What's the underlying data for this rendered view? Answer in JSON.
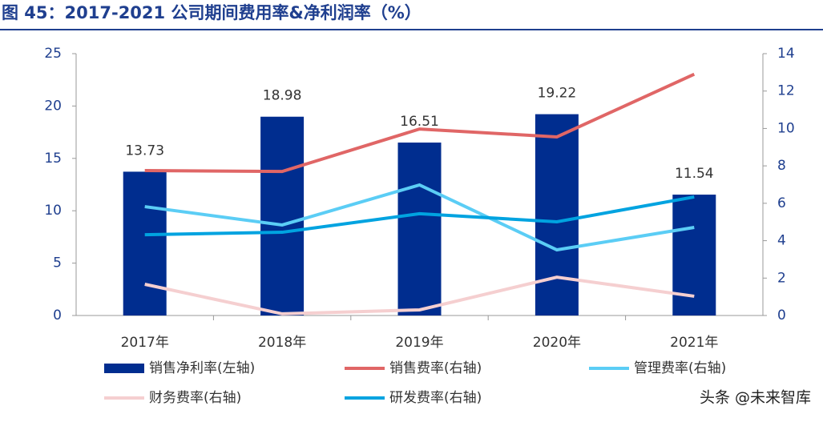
{
  "chart_data": {
    "type": "bar",
    "title": "图 45：2017-2021 公司期间费用率&净利润率（%）",
    "categories": [
      "2017年",
      "2018年",
      "2019年",
      "2020年",
      "2021年"
    ],
    "series": [
      {
        "name": "销售净利率(左轴)",
        "type": "bar",
        "color": "#002d8f",
        "values": [
          13.73,
          18.98,
          16.51,
          19.22,
          11.54
        ]
      },
      {
        "name": "销售费率(右轴)",
        "type": "line",
        "axis": "y2",
        "color": "#e06666",
        "values": [
          7.75,
          7.7,
          9.97,
          9.55,
          12.9
        ]
      },
      {
        "name": "管理费率(右轴)",
        "type": "line",
        "axis": "y2",
        "color": "#5bcdf5",
        "values": [
          5.82,
          4.84,
          6.98,
          3.51,
          4.71
        ]
      },
      {
        "name": "财务费率(右轴)",
        "type": "line",
        "axis": "y2",
        "color": "#f5cfd0",
        "values": [
          1.67,
          0.09,
          0.3,
          2.05,
          1.03
        ]
      },
      {
        "name": "研发费率(右轴)",
        "type": "line",
        "axis": "y2",
        "color": "#00a3e0",
        "values": [
          4.32,
          4.45,
          5.44,
          5.01,
          6.34
        ]
      }
    ],
    "ylim": [
      0,
      25
    ],
    "yticks": [
      0,
      5,
      10,
      15,
      20,
      25
    ],
    "y2lim": [
      0,
      14
    ],
    "y2ticks": [
      0,
      2,
      4,
      6,
      8,
      10,
      12,
      14
    ],
    "watermark": "头条 @未来智库"
  }
}
